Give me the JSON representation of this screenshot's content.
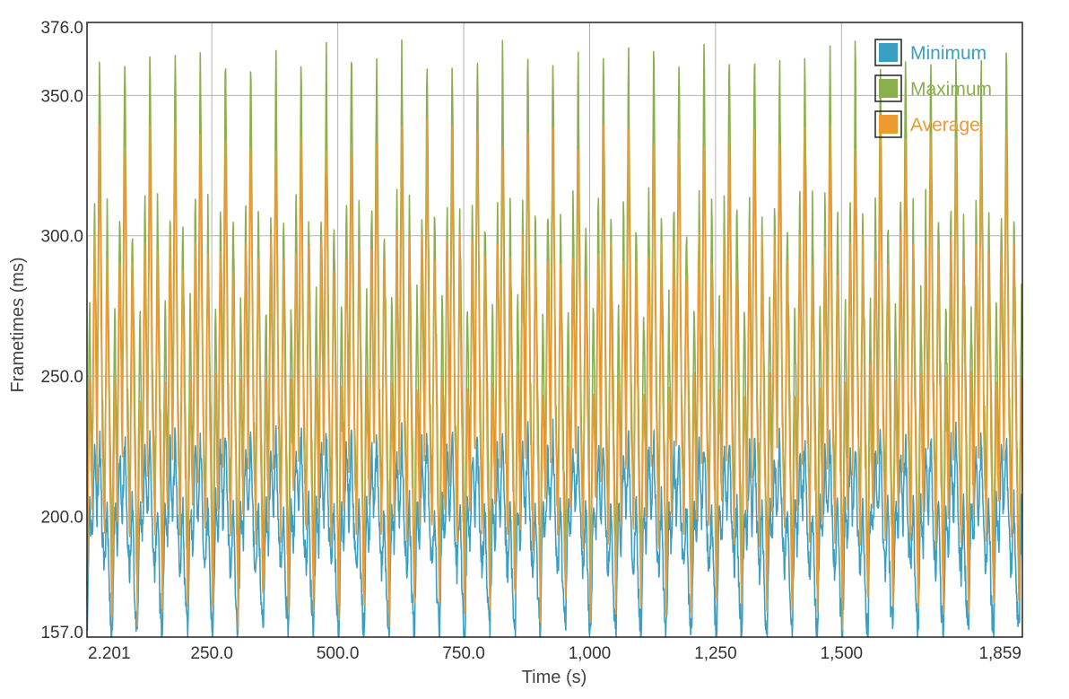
{
  "chart_data": {
    "type": "line",
    "xlabel": "Time (s)",
    "ylabel": "Frametimes (ms)",
    "xlim": [
      2.201,
      1859
    ],
    "ylim": [
      157.0,
      376.0
    ],
    "x_ticks": [
      2.201,
      250,
      500,
      750,
      1000,
      1250,
      1500,
      1859
    ],
    "x_tick_labels": [
      "2.201",
      "250.0",
      "500.0",
      "750.0",
      "1,000",
      "1,250",
      "1,500",
      "1,859"
    ],
    "y_ticks": [
      157,
      200,
      250,
      300,
      350,
      376
    ],
    "y_tick_labels": [
      "157.0",
      "200.0",
      "250.0",
      "300.0",
      "350.0",
      "376.0"
    ],
    "grid": true,
    "legend_position": "top-right",
    "cycle_period_s": 50,
    "series": [
      {
        "name": "Minimum",
        "color": "#3a9fc3",
        "cycle_profile": {
          "x_offset_s": [
            0,
            5,
            10,
            15,
            20,
            25,
            30,
            35,
            40,
            45,
            50
          ],
          "y": [
            157,
            205,
            190,
            225,
            198,
            230,
            195,
            180,
            205,
            170,
            157
          ]
        }
      },
      {
        "name": "Maximum",
        "color": "#8ab04d",
        "cycle_profile": {
          "x_offset_s": [
            0,
            5,
            10,
            15,
            20,
            25,
            30,
            35,
            40,
            45,
            50
          ],
          "y": [
            175,
            280,
            210,
            315,
            230,
            370,
            250,
            200,
            310,
            240,
            175
          ]
        }
      },
      {
        "name": "Average",
        "color": "#ec9a31",
        "cycle_profile": {
          "x_offset_s": [
            0,
            5,
            10,
            15,
            20,
            25,
            30,
            35,
            40,
            45,
            50
          ],
          "y": [
            165,
            250,
            200,
            300,
            215,
            340,
            235,
            190,
            295,
            220,
            165
          ]
        }
      }
    ]
  }
}
